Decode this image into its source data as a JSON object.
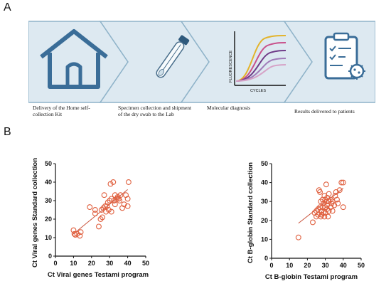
{
  "panels": {
    "a": "A",
    "b": "B"
  },
  "workflow": {
    "steps": [
      {
        "label": "Delivery of the Home self-collection Kit",
        "icon": "house-icon"
      },
      {
        "label": "Specimen collection and shipment of the dry swab to the Lab",
        "icon": "swab-tube-icon"
      },
      {
        "label": "Molecular diagnosis",
        "icon": "pcr-amplification-curve-icon",
        "axis_y": "FLUORESCENCE",
        "axis_x": "CYCLES"
      },
      {
        "label": "Results delivered to patients",
        "icon": "clipboard-virus-icon"
      }
    ],
    "colors": {
      "band": "#dde9f1",
      "border": "#8fb3c9",
      "icon": "#3a6d98"
    }
  },
  "chart_data": [
    {
      "type": "scatter",
      "xlabel": "Ct Viral genes Testami program",
      "ylabel": "Ct Viral genes Standard collection",
      "xlim": [
        0,
        50
      ],
      "ylim": [
        0,
        50
      ],
      "xticks": [
        "0",
        "10",
        "20",
        "30",
        "40",
        "50"
      ],
      "yticks": [
        "0",
        "10",
        "20",
        "30",
        "40",
        "50"
      ],
      "trendline": [
        [
          10,
          12
        ],
        [
          40,
          36
        ]
      ],
      "color": "#e0603f",
      "points": [
        [
          10,
          14
        ],
        [
          10.5,
          12
        ],
        [
          11,
          11.5
        ],
        [
          12,
          12
        ],
        [
          13.5,
          11
        ],
        [
          14,
          13
        ],
        [
          19,
          26.5
        ],
        [
          22,
          23
        ],
        [
          22,
          25
        ],
        [
          24,
          16
        ],
        [
          25,
          20
        ],
        [
          25.5,
          25
        ],
        [
          26,
          21
        ],
        [
          26.5,
          26
        ],
        [
          27,
          33
        ],
        [
          27.5,
          27
        ],
        [
          28,
          24
        ],
        [
          28.5,
          27
        ],
        [
          29,
          29
        ],
        [
          29.5,
          25
        ],
        [
          30,
          30
        ],
        [
          30.5,
          39
        ],
        [
          31,
          24
        ],
        [
          31,
          31
        ],
        [
          32,
          40
        ],
        [
          32.5,
          30
        ],
        [
          33,
          28
        ],
        [
          33,
          33
        ],
        [
          34,
          31
        ],
        [
          34.5,
          32
        ],
        [
          35,
          31
        ],
        [
          35.5,
          30
        ],
        [
          36,
          33
        ],
        [
          37,
          26
        ],
        [
          38,
          28
        ],
        [
          39,
          33
        ],
        [
          40,
          27
        ],
        [
          40,
          31
        ],
        [
          40.5,
          40
        ]
      ]
    },
    {
      "type": "scatter",
      "xlabel": "Ct B-globin Testami program",
      "ylabel": "Ct B-globin Standard collection",
      "xlim": [
        0,
        50
      ],
      "ylim": [
        0,
        50
      ],
      "xticks": [
        "0",
        "10",
        "20",
        "30",
        "40",
        "50"
      ],
      "yticks": [
        "0",
        "10",
        "20",
        "30",
        "40",
        "50"
      ],
      "trendline": [
        [
          15,
          18.5
        ],
        [
          40,
          37
        ]
      ],
      "color": "#e0603f",
      "points": [
        [
          15,
          11
        ],
        [
          23,
          19
        ],
        [
          24,
          24
        ],
        [
          25,
          22
        ],
        [
          25,
          25
        ],
        [
          26,
          26
        ],
        [
          26,
          23
        ],
        [
          26.5,
          36
        ],
        [
          27,
          35
        ],
        [
          27,
          27
        ],
        [
          27.5,
          22
        ],
        [
          27.5,
          30
        ],
        [
          28,
          23
        ],
        [
          28,
          25
        ],
        [
          28.5,
          31
        ],
        [
          28.5,
          27
        ],
        [
          29,
          24
        ],
        [
          29,
          29
        ],
        [
          29.5,
          22
        ],
        [
          29.5,
          33
        ],
        [
          30,
          27
        ],
        [
          30,
          31
        ],
        [
          30,
          24
        ],
        [
          30.5,
          30
        ],
        [
          30.5,
          39
        ],
        [
          31,
          28
        ],
        [
          31,
          26
        ],
        [
          31,
          32
        ],
        [
          31.5,
          22
        ],
        [
          32,
          25
        ],
        [
          32,
          30
        ],
        [
          32,
          34
        ],
        [
          33,
          27
        ],
        [
          33,
          31
        ],
        [
          33.5,
          29
        ],
        [
          34,
          30
        ],
        [
          34,
          25
        ],
        [
          35,
          28
        ],
        [
          35.5,
          33
        ],
        [
          36,
          35
        ],
        [
          36.5,
          31
        ],
        [
          37,
          29
        ],
        [
          38,
          36
        ],
        [
          39,
          40
        ],
        [
          40,
          40
        ],
        [
          40,
          27
        ]
      ]
    }
  ]
}
